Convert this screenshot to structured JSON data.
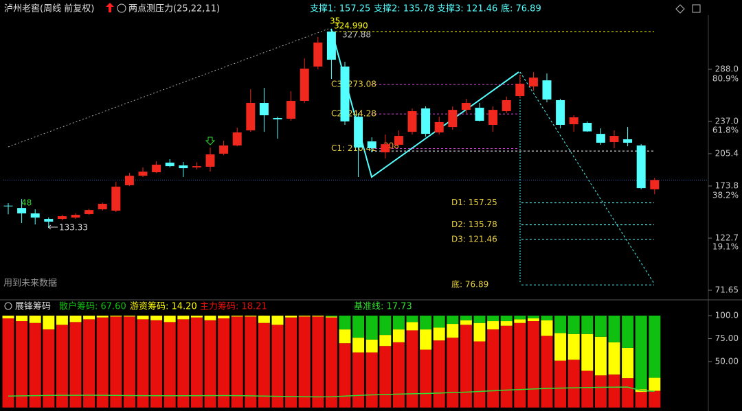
{
  "header": {
    "title": "泸州老窖(周线 前复权)",
    "indicator": "两点测压力(25,22,11)",
    "supports": [
      "支撑1: 157.25",
      "支撑2: 135.78",
      "支撑3: 121.46",
      "底: 76.89"
    ]
  },
  "chart_data": [
    {
      "type": "candlestick",
      "up_color": "#f0281e",
      "down_color": "#54ffff",
      "ylim": [
        63.6,
        341.1
      ],
      "yticks": [
        {
          "value": 288,
          "label": "288.0"
        },
        {
          "value": 237,
          "label": "237.0"
        },
        205.4,
        173.8,
        122.7,
        71.65
      ],
      "ratio_ticks": [
        {
          "value": 278.6,
          "label": "80.9%"
        },
        {
          "value": 228.2,
          "label": "61.8%"
        },
        {
          "value": 164.3,
          "label": "38.2%"
        },
        {
          "value": 113.9,
          "label": "19.1%"
        }
      ],
      "open": [
        154.5,
        152.2,
        146.9,
        141.5,
        141.5,
        142.8,
        146.2,
        150.9,
        149.6,
        174.5,
        183.8,
        187.2,
        196.6,
        193.9,
        191.9,
        192.6,
        205.4,
        213.4,
        228.2,
        255.1,
        240.3,
        239.6,
        257.1,
        290.7,
        325.0,
        290.7,
        241.6,
        217.4,
        206.7,
        214.1,
        226.8,
        249.7,
        226.2,
        231.5,
        248.3,
        250.4,
        233.6,
        247.0,
        261.8,
        271.2,
        277.2,
        257.8,
        234.2,
        235.6,
        224.8,
        216.8,
        219.5,
        213.4,
        170.5
      ],
      "high": [
        157,
        161,
        150.9,
        143,
        145.5,
        147,
        151.5,
        157.6,
        177.8,
        186.5,
        192,
        198,
        200,
        197.3,
        197,
        211.4,
        218.1,
        230.8,
        268.5,
        269.9,
        241.6,
        266.5,
        298.7,
        319.6,
        327.88,
        295.3,
        244.9,
        221.4,
        224.1,
        228.2,
        249.7,
        251.7,
        241.6,
        251.7,
        259.2,
        255.1,
        251.7,
        261.2,
        282.6,
        285.3,
        283.9,
        259.2,
        243.0,
        237.0,
        230.2,
        228.2,
        231.5,
        214.7,
        181.8
      ],
      "low": [
        146,
        137.5,
        136.1,
        133.33,
        140.2,
        141.5,
        145.5,
        149.6,
        148.2,
        173.8,
        182.5,
        186.5,
        192,
        182.5,
        189.9,
        187.8,
        204,
        212.7,
        226.8,
        226.8,
        220.1,
        237.6,
        255.1,
        288,
        278.6,
        233.6,
        182.5,
        206.7,
        200.7,
        213.4,
        224.1,
        222.1,
        224.1,
        228.8,
        244.9,
        237.0,
        226.8,
        244.9,
        259.8,
        267.2,
        255.7,
        230.2,
        226.8,
        226.8,
        214.1,
        210.7,
        212.7,
        170.5,
        165.7
      ],
      "close": [
        154,
        146.9,
        142.8,
        138.8,
        144.2,
        145.5,
        150.2,
        156.3,
        173.1,
        183.8,
        187.8,
        194.6,
        193.2,
        191.2,
        193.2,
        204.7,
        213.4,
        226.2,
        255.1,
        243.0,
        239.0,
        257.1,
        288.7,
        314.2,
        297.4,
        237.0,
        211.4,
        210.7,
        214.7,
        222.8,
        247.0,
        224.8,
        236.3,
        248.3,
        255.1,
        237.6,
        248.3,
        257.8,
        273.9,
        279.9,
        258.4,
        233.6,
        241.0,
        227.2,
        216.1,
        222.8,
        216.1,
        171.7,
        179.6
      ],
      "peak_line": {
        "label": "324.990",
        "value": 324.99
      },
      "ref_line": {
        "label": "208",
        "value": 208
      },
      "c_levels": [
        {
          "label": "C3: 273.08",
          "value": 273.08
        },
        {
          "label": "C2: 244.28",
          "value": 244.28
        },
        {
          "label": "C1: 210.42",
          "value": 210.42
        }
      ],
      "d_levels": [
        {
          "label": "D1: 157.25",
          "value": 157.25
        },
        {
          "label": "D2: 135.78",
          "value": 135.78
        },
        {
          "label": "D3: 121.46",
          "value": 121.46
        },
        {
          "label": "底: 76.89",
          "value": 76.89
        }
      ],
      "notes": [
        "48",
        "35"
      ],
      "footnote": "用到未来数据"
    },
    {
      "type": "stacked-bar",
      "title": "展锋筹码",
      "ylim": [
        0,
        100
      ],
      "yticks": [
        {
          "value": 100,
          "label": "100.0"
        },
        {
          "value": 75,
          "label": "75.00"
        },
        {
          "value": 50,
          "label": "50.00"
        }
      ],
      "series": [
        {
          "name": "散户筹码: 67.60",
          "color": "#10c010",
          "values": [
            0,
            0,
            0,
            0,
            0,
            0,
            0,
            0,
            0,
            0,
            0,
            0,
            0,
            0,
            0,
            0,
            0,
            0,
            0,
            0,
            0,
            0,
            0,
            0,
            1,
            15,
            24,
            26,
            21,
            15,
            7,
            15,
            13,
            9,
            5,
            8,
            6,
            6,
            4,
            3,
            5,
            19,
            20,
            20,
            23,
            29,
            35,
            80,
            67.6
          ]
        },
        {
          "name": "游资筹码: 14.20",
          "color": "#ffff00",
          "values": [
            3,
            6,
            8,
            15,
            10,
            7,
            4,
            2,
            1,
            1,
            4,
            5,
            7,
            4,
            2,
            5,
            3,
            1,
            1,
            8,
            10,
            2,
            1,
            1,
            1,
            15,
            16,
            14,
            12,
            14,
            9,
            22,
            14,
            15,
            5,
            20,
            9,
            5,
            4,
            3,
            17,
            30,
            28,
            40,
            42,
            35,
            33,
            3,
            14.2
          ]
        },
        {
          "name": "主力筹码: 18.21",
          "color": "#e8100c",
          "values": [
            97,
            94,
            92,
            85,
            90,
            93,
            96,
            98,
            99,
            99,
            96,
            95,
            93,
            96,
            98,
            95,
            97,
            99,
            99,
            92,
            90,
            98,
            99,
            99,
            98,
            70,
            60,
            60,
            67,
            71,
            84,
            63,
            73,
            76,
            90,
            72,
            85,
            89,
            92,
            94,
            78,
            51,
            52,
            40,
            35,
            36,
            32,
            17,
            18.21
          ]
        }
      ],
      "baseline": {
        "name": "基准线: 17.73",
        "color": "#33dd33",
        "values": [
          12.5,
          12.8,
          13,
          13.2,
          13.3,
          13.3,
          13.4,
          13.3,
          13.2,
          13.1,
          13,
          13,
          12.9,
          12.9,
          13,
          13,
          13.1,
          13,
          12.8,
          12.5,
          12.2,
          12,
          11.8,
          11.7,
          11.8,
          12.5,
          13.2,
          13.8,
          14.2,
          14.6,
          15,
          15.3,
          15.8,
          16.3,
          16.8,
          17.5,
          18.3,
          19,
          19.6,
          20.2,
          20.8,
          21.2,
          21.5,
          21.8,
          22,
          22.2,
          22.3,
          18.5,
          17.73
        ]
      }
    }
  ]
}
